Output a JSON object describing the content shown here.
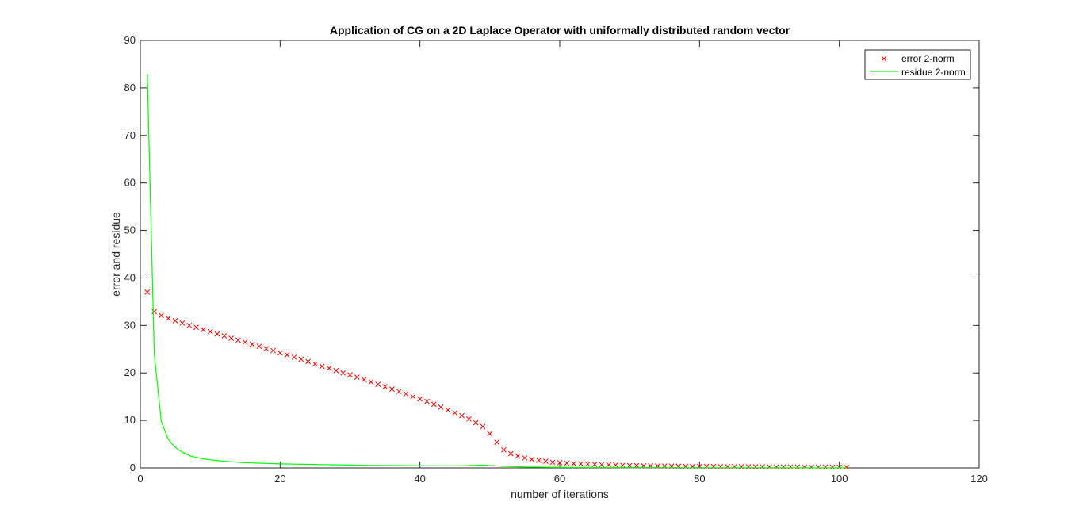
{
  "chart_data": {
    "type": "line",
    "title": "Application of CG on a 2D Laplace Operator with uniformally distributed random vector",
    "xlabel": "number of iterations",
    "ylabel": "error and residue",
    "xlim": [
      0,
      120
    ],
    "ylim": [
      0,
      90
    ],
    "xticks": [
      0,
      20,
      40,
      60,
      80,
      100,
      120
    ],
    "yticks": [
      0,
      10,
      20,
      30,
      40,
      50,
      60,
      70,
      80,
      90
    ],
    "grid": false,
    "legend_position": "top-right",
    "series": [
      {
        "name": "error 2-norm",
        "style": "markers-x",
        "color": "#ff0000",
        "x": [
          1,
          2,
          3,
          4,
          5,
          6,
          7,
          8,
          9,
          10,
          11,
          12,
          13,
          14,
          15,
          16,
          17,
          18,
          19,
          20,
          21,
          22,
          23,
          24,
          25,
          26,
          27,
          28,
          29,
          30,
          31,
          32,
          33,
          34,
          35,
          36,
          37,
          38,
          39,
          40,
          41,
          42,
          43,
          44,
          45,
          46,
          47,
          48,
          49,
          50,
          51,
          52,
          53,
          54,
          55,
          56,
          57,
          58,
          59,
          60,
          61,
          62,
          63,
          64,
          65,
          66,
          67,
          68,
          69,
          70,
          71,
          72,
          73,
          74,
          75,
          76,
          77,
          78,
          79,
          80,
          81,
          82,
          83,
          84,
          85,
          86,
          87,
          88,
          89,
          90,
          91,
          92,
          93,
          94,
          95,
          96,
          97,
          98,
          99,
          100,
          101
        ],
        "values": [
          37.0,
          32.9,
          32.1,
          31.5,
          31.0,
          30.5,
          30.0,
          29.6,
          29.1,
          28.7,
          28.2,
          27.8,
          27.3,
          26.9,
          26.5,
          26.0,
          25.6,
          25.1,
          24.7,
          24.2,
          23.8,
          23.3,
          22.9,
          22.4,
          21.9,
          21.4,
          21.0,
          20.5,
          20.0,
          19.6,
          19.1,
          18.6,
          18.1,
          17.6,
          17.1,
          16.6,
          16.1,
          15.6,
          15.0,
          14.5,
          14.0,
          13.4,
          12.8,
          12.2,
          11.6,
          11.0,
          10.3,
          9.5,
          8.7,
          7.2,
          5.4,
          3.8,
          3.0,
          2.5,
          2.1,
          1.8,
          1.6,
          1.4,
          1.2,
          1.1,
          1.0,
          0.9,
          0.85,
          0.8,
          0.75,
          0.7,
          0.65,
          0.6,
          0.55,
          0.5,
          0.48,
          0.46,
          0.44,
          0.42,
          0.4,
          0.38,
          0.36,
          0.35,
          0.34,
          0.33,
          0.32,
          0.31,
          0.3,
          0.29,
          0.28,
          0.27,
          0.26,
          0.25,
          0.24,
          0.23,
          0.22,
          0.21,
          0.2,
          0.2,
          0.19,
          0.18,
          0.18,
          0.17,
          0.17,
          0.16,
          0.16
        ]
      },
      {
        "name": "residue 2-norm",
        "style": "line",
        "color": "#00ff00",
        "x": [
          1,
          2,
          3,
          4,
          5,
          6,
          7,
          8,
          9,
          10,
          11,
          12,
          13,
          14,
          15,
          16,
          17,
          18,
          19,
          20,
          22,
          24,
          26,
          28,
          30,
          32,
          34,
          36,
          38,
          40,
          42,
          44,
          46,
          48,
          49,
          50,
          52,
          55,
          60,
          65,
          70,
          75,
          80,
          85,
          90,
          95,
          100,
          101
        ],
        "values": [
          83.0,
          24.0,
          9.8,
          6.0,
          4.3,
          3.3,
          2.6,
          2.2,
          1.9,
          1.7,
          1.55,
          1.4,
          1.3,
          1.2,
          1.1,
          1.05,
          1.0,
          0.95,
          0.9,
          0.85,
          0.8,
          0.75,
          0.7,
          0.65,
          0.6,
          0.55,
          0.52,
          0.5,
          0.48,
          0.46,
          0.45,
          0.44,
          0.45,
          0.55,
          0.6,
          0.5,
          0.35,
          0.2,
          0.12,
          0.08,
          0.06,
          0.05,
          0.04,
          0.03,
          0.03,
          0.02,
          0.02,
          0.02
        ]
      }
    ]
  }
}
